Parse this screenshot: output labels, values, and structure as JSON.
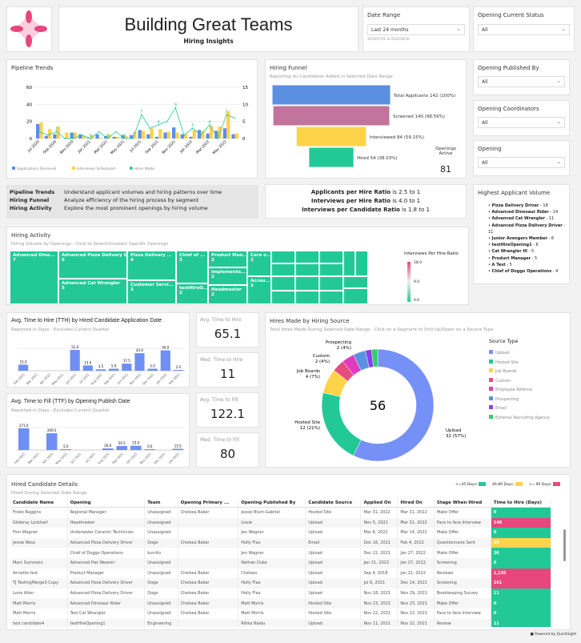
{
  "header": {
    "title": "Building Great Teams",
    "subtitle": "Hiring Insights",
    "logo": "pink-four-point-star-logo"
  },
  "filters": {
    "date_range": {
      "label": "Date Range",
      "value": "Last 24 months",
      "caption": "2020/07/01 to 2022/06/30"
    },
    "opening_status": {
      "label": "Opening Current Status",
      "value": "All"
    },
    "published_by": {
      "label": "Opening Published By",
      "value": "All"
    },
    "coordinators": {
      "label": "Opening Coordinators",
      "value": "All"
    },
    "opening": {
      "label": "Opening",
      "value": "All"
    }
  },
  "pipeline": {
    "title": "Pipeline Trends"
  },
  "funnel": {
    "title": "Hiring Funnel",
    "subtitle": "Reporting on Candidates Added in Selected Date Range",
    "openings_label": "Openings Active",
    "openings_value": "81"
  },
  "info": [
    {
      "k": "Pipeline Trends",
      "v": "Understand applicant volumes and hiring patterns over time"
    },
    {
      "k": "Hiring Funnel",
      "v": "Analyze efficiency of the hiring process by segment"
    },
    {
      "k": "Hiring Activity",
      "v": "Explore the most prominent openings by hiring volume"
    }
  ],
  "ratios": [
    {
      "k": "Applicants per Hire Ratio",
      "v": "is 2.5 to 1"
    },
    {
      "k": "Interviews per Hire Ratio",
      "v": "is 4.0 to 1"
    },
    {
      "k": "Interviews per Candidate Ratio",
      "v": "is 1.8 to 1"
    }
  ],
  "highest": {
    "title": "Highest Applicant Volume",
    "items": [
      {
        "n": "Pizza Delivery Driver",
        "c": "- 18"
      },
      {
        "n": "Advanced Dinosaur Rider",
        "c": "- 14"
      },
      {
        "n": "Advanced Cat Wrangler",
        "c": "- 11"
      },
      {
        "n": "Advanced Pizza Delivery Driver",
        "c": "- 11"
      },
      {
        "n": "Junior Avengers Member",
        "c": " - 6"
      },
      {
        "n": "testHireOpening1",
        "c": "- 6"
      },
      {
        "n": "Cat Wrangler III",
        "c": "- 5"
      },
      {
        "n": "Product Manager",
        "c": "- 5"
      },
      {
        "n": "A Test",
        "c": "- 5"
      },
      {
        "n": "Chief of Doggo Operations",
        "c": "- 4"
      }
    ]
  },
  "activity": {
    "title": "Hiring Activity",
    "subtitle": "Hiring Volume by Openings - Click to Select/Unselect Specific Openings",
    "legend_title": "Interviews Per Hire Ratio",
    "legend_ticks": [
      "18.0",
      "9.0",
      "0.0"
    ],
    "tiles": [
      {
        "n": "Advanced Dino...",
        "v": "7"
      },
      {
        "n": "Advanced Pizza Delivery Dri...",
        "v": "6"
      },
      {
        "n": "Advanced Cat Wrangler",
        "v": "5"
      },
      {
        "n": "Pizza Delivery ...",
        "v": "4"
      },
      {
        "n": "Customer Servi...",
        "v": "3"
      },
      {
        "n": "Chief of ...",
        "v": "3"
      },
      {
        "n": "testHireO...",
        "v": "2"
      },
      {
        "n": "Product Man...",
        "v": "2"
      },
      {
        "n": "Implementa...",
        "v": "2"
      },
      {
        "n": "Headmaster",
        "v": "2"
      },
      {
        "n": "Care o...",
        "v": "2"
      },
      {
        "n": "Accou...",
        "v": "2"
      }
    ]
  },
  "kpis": {
    "avg_tth": {
      "label": "Avg. Time to Hire",
      "value": "65.1"
    },
    "med_tth": {
      "label": "Med. Time to Hire",
      "value": "11"
    },
    "avg_ttf": {
      "label": "Avg. Time to Fill",
      "value": "122.1"
    },
    "med_ttf": {
      "label": "Med. Time to Fill",
      "value": "80"
    }
  },
  "tth": {
    "title": "Avg. Time to Hire (TTH) by Hired Candidate Application Date",
    "subtitle": "Reported in Days - Excludes Current Quarter"
  },
  "ttf": {
    "title": "Avg. Time to Fill (TTF) by Opening Publish Date",
    "subtitle": "Reported in Days - Excludes Current Quarter"
  },
  "source": {
    "title": "Hires Made by Hiring Source",
    "subtitle": "Total Hires Made During Selected Date Range - Click on a Segment to Drill Up/Down on a Source Type",
    "total": "56",
    "legend_title": "Source Type"
  },
  "table": {
    "title": "Hired Candidate Details",
    "subtitle": "Hired During Selected Date Range",
    "legend": [
      {
        "l": "<=45 Days:",
        "c": "#22c997"
      },
      {
        "l": "46-89 Days:",
        "c": "#fdd34a"
      },
      {
        "l": ">= 90 Days:",
        "c": "#e8467c"
      }
    ],
    "columns": [
      "Candidate Name",
      "Opening",
      "Team",
      "Opening Primary ...",
      "Opening Published By",
      "Candidate Source",
      "Applied On",
      "Hired On",
      "Stage When Hired",
      "Time to Hire (Days)"
    ],
    "rows": [
      [
        "Frodo Baggins",
        "Regional Manager",
        "Unassigned",
        "Chelsea Baker",
        "Jessie Blum-Gabriel",
        "Hosted Site",
        "Mar 31, 2022",
        "Mar 31, 2022",
        "Make Offer",
        "0"
      ],
      [
        "Gilderoy Lockhart",
        "Headmaster",
        "Unassigned",
        "",
        "Lissie",
        "Upload",
        "Nov 5, 2021",
        "Mar 31, 2022",
        "Face to face Interview",
        "148"
      ],
      [
        "Finn Wagner",
        "Underwater Ceramic Technician",
        "Unassigned",
        "",
        "Jen Wagner",
        "Upload",
        "Mar 8, 2022",
        "Mar 14, 2022",
        "Make Offer",
        "6"
      ],
      [
        "Jessie Rbox",
        "Advanced Pizza Delivery Driver",
        "Doge",
        "Chelsea Baker",
        "Holly Flax",
        "Email",
        "Dec 16, 2021",
        "Feb 4, 2022",
        "Questionnaire Sent",
        "50"
      ],
      [
        "",
        "Chief of Doggo Operations",
        "burrito",
        "",
        "Jen Wagner",
        "Upload",
        "Dec 22, 2021",
        "Jan 27, 2022",
        "Make Offer",
        "36"
      ],
      [
        "Marc Summers",
        "Advanced Hat Wearer!",
        "Unassigned",
        "",
        "Nathan Duke",
        "Upload",
        "Jan 21, 2022",
        "Jan 27, 2022",
        "Screening",
        "6"
      ],
      [
        "Annette test",
        "Product Manager",
        "Unassigned",
        "Chelsea Baker",
        "Chelsea",
        "Upload",
        "Sep 4, 2018",
        "Jan 21, 2022",
        "Reviews",
        "1,235"
      ],
      [
        "TJ TestingMerge3-Copy",
        "Advanced Pizza Delivery Driver",
        "Doge",
        "Chelsea Baker",
        "Holly Flax",
        "Upload",
        "Jul 6, 2021",
        "Dec 14, 2021",
        "Screening",
        "161"
      ],
      [
        "Lorie Allen",
        "Advanced Pizza Delivery Driver",
        "Doge",
        "Chelsea Baker",
        "Holly Flax",
        "Upload",
        "Nov 18, 2021",
        "Nov 29, 2021",
        "Bookkeeping Survey",
        "11"
      ],
      [
        "Matt Morris",
        "Advanced Dinosaur Rider",
        "Unassigned",
        "Chelsea Baker",
        "Matt Morris",
        "Hosted Site",
        "Nov 23, 2021",
        "Nov 23, 2021",
        "Make Offer",
        "0"
      ],
      [
        "Matt Morris",
        "Test Cat Wrangler",
        "Unassigned",
        "Chelsea Baker",
        "Matt Morris",
        "Hosted Site",
        "Nov 22, 2021",
        "Nov 22, 2021",
        "Face to face Interview",
        "0"
      ],
      [
        "test candidate4",
        "testHireOpening1",
        "Engineering",
        "",
        "Ritika Naidu",
        "Upload",
        "Nov 11, 2021",
        "Nov 22, 2021",
        "Review",
        "11"
      ],
      [
        "Rubeus Hagrid",
        "Care of Magical Creatures ...",
        "Unassigned",
        "",
        "Lissie",
        "Upload",
        "Nov 18, 2021",
        "Nov 18, 2021",
        "offer time!",
        "0"
      ]
    ]
  },
  "footer": {
    "powered": "Powered by QuickSight"
  },
  "chart_data": [
    {
      "type": "bar",
      "id": "pipeline",
      "title": "Pipeline Trends",
      "x_tick_labels": [
        "Jul 2020",
        "Sep 2020",
        "Nov 2020",
        "Jan 2021",
        "Mar 2021",
        "May 2021",
        "Jul 2021",
        "Sep 2021",
        "Nov 2021",
        "Jan 2022",
        "Mar 2022",
        "May 2022"
      ],
      "categories": [
        "Jul 2020",
        "Aug 2020",
        "Sep 2020",
        "Oct 2020",
        "Nov 2020",
        "Dec 2020",
        "Jan 2021",
        "Feb 2021",
        "Mar 2021",
        "Apr 2021",
        "May 2021",
        "Jun 2021",
        "Jul 2021",
        "Aug 2021",
        "Sep 2021",
        "Oct 2021",
        "Nov 2021",
        "Dec 2021",
        "Jan 2022",
        "Feb 2022",
        "Mar 2022",
        "Apr 2022",
        "May 2022",
        "Jun 2022"
      ],
      "ylim": [
        0,
        60
      ],
      "y2lim": [
        0,
        15
      ],
      "yticks": [
        0,
        20,
        40,
        60
      ],
      "y2ticks": [
        0,
        5,
        10,
        15
      ],
      "legend": "bottom-left",
      "series": [
        {
          "name": "Applications Received",
          "kind": "bar",
          "axis": "left",
          "color": "#5b8def",
          "values": [
            17,
            3,
            5,
            0,
            7,
            5,
            1,
            5,
            3,
            2,
            4,
            4,
            10,
            5,
            2,
            7,
            13,
            5,
            2,
            10,
            6,
            9,
            12,
            5
          ]
        },
        {
          "name": "Interviews Scheduled",
          "kind": "bar",
          "axis": "left",
          "color": "#fdd34a",
          "values": [
            19,
            11,
            14,
            7,
            7,
            3,
            4,
            1,
            5,
            2,
            3,
            8,
            9,
            12,
            11,
            8,
            7,
            5,
            10,
            9,
            15,
            14,
            32,
            6
          ]
        },
        {
          "name": "Hires Made",
          "kind": "line",
          "axis": "right",
          "color": "#22c997",
          "values": [
            2,
            1,
            2,
            0,
            0,
            1,
            0,
            2,
            0,
            2,
            0,
            0,
            7,
            3,
            4,
            5,
            9,
            1,
            3,
            1,
            4,
            0,
            7,
            6
          ]
        }
      ]
    },
    {
      "type": "funnel",
      "id": "funnel",
      "stages": [
        {
          "label": "Total Applicants 142 (100%)",
          "value": 142,
          "color": "#5b8fe0"
        },
        {
          "label": "Screened 140 (98.59%)",
          "value": 140,
          "color": "#c2749c"
        },
        {
          "label": "Interviewed 84 (59.15%)",
          "value": 84,
          "color": "#fdd34a"
        },
        {
          "label": "Hired 54 (38.03%)",
          "value": 54,
          "color": "#22c997"
        }
      ]
    },
    {
      "type": "bar",
      "id": "tth",
      "categories": [
        "Feb 2021",
        "Mar 2021",
        "Apr 2021",
        "May 2021",
        "Jun 2021",
        "Jul 2021",
        "Aug 2021",
        "Sep 2021",
        "Oct 2021",
        "Nov 2021",
        "Dec 2021",
        "Jan 2022",
        "Feb 2022"
      ],
      "values": [
        15.0,
        null,
        null,
        null,
        51.0,
        13.0,
        3.5,
        5.0,
        17.5,
        43.0,
        5.0,
        50.0,
        2.0
      ],
      "color": "#6f8ff5"
    },
    {
      "type": "bar",
      "id": "ttf",
      "categories": [
        "Feb 2021",
        "Mar 2021",
        "Apr 2021",
        "May 2021",
        "Jun 2021",
        "Jul 2021",
        "Aug 2021",
        "Sep 2021",
        "Oct 2021",
        "Nov 2021",
        "Dec 2021",
        "Jan 2022"
      ],
      "values": [
        271.0,
        null,
        209.5,
        5.0,
        null,
        null,
        20.0,
        50.5,
        53.0,
        0.0,
        null,
        15.5
      ],
      "color": "#6f8ff5"
    },
    {
      "type": "pie",
      "id": "source",
      "donut": true,
      "slices": [
        {
          "name": "Upload",
          "value": 32,
          "label": "32 (57%)",
          "color": "#7590f7"
        },
        {
          "name": "Hosted Site",
          "value": 12,
          "label": "12 (21%)",
          "color": "#22c997"
        },
        {
          "name": "Job Boards",
          "value": 4,
          "label": "4 (7%)",
          "color": "#fdd34a"
        },
        {
          "name": "Custom",
          "value": 2,
          "label": "2 (4%)",
          "color": "#e44d7d"
        },
        {
          "name": "Employee Referral",
          "value": 2,
          "label": "",
          "color": "#e03bbf"
        },
        {
          "name": "Prospecting",
          "value": 2,
          "label": "2 (4%)",
          "color": "#5a92e0"
        },
        {
          "name": "Email",
          "value": 1,
          "label": "",
          "color": "#8b3cf0"
        },
        {
          "name": "External Recruiting Agency",
          "value": 1,
          "label": "",
          "color": "#2fcf6a"
        }
      ]
    }
  ]
}
